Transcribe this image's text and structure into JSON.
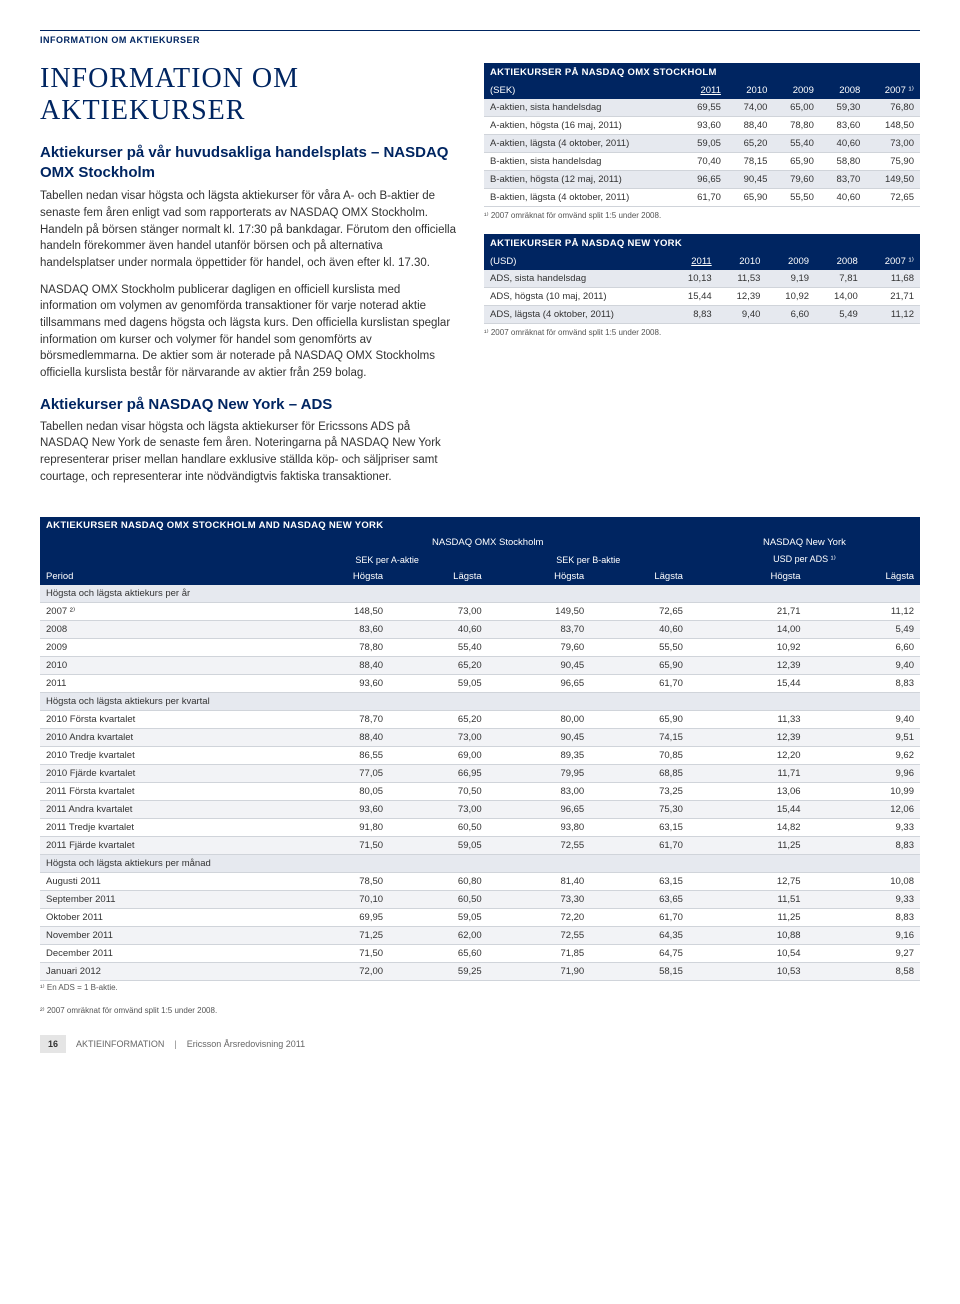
{
  "topLabel": "INFORMATION OM AKTIEKURSER",
  "title": "INFORMATION OM AKTIEKURSER",
  "left": {
    "subtitle": "Aktiekurser på vår huvudsakliga handelsplats – NASDAQ OMX Stockholm",
    "para1": "Tabellen nedan visar högsta och lägsta aktiekurser för våra A- och B-aktier de senaste fem åren enligt vad som rapporterats av NASDAQ OMX Stockholm. Handeln på börsen stänger normalt kl. 17:30 på bankdagar. Förutom den officiella handeln förekommer även handel utanför börsen och på alternativa handelsplatser under normala öppettider för handel, och även efter kl. 17.30.",
    "para2": "NASDAQ OMX Stockholm publicerar dagligen en officiell kurslista med information om volymen av genomförda transaktioner för varje noterad aktie tillsammans med dagens högsta och lägsta kurs. Den officiella kurslistan speglar information om kurser och volymer för handel som genomförts av börsmedlemmarna. De aktier som är noterade på NASDAQ OMX Stockholms officiella kurslista består för närvarande av aktier från 259 bolag.",
    "section2": "Aktiekurser på NASDAQ New York – ADS",
    "para3": "Tabellen nedan visar högsta och lägsta aktiekurser för Ericssons ADS på NASDAQ New York de senaste fem åren. Noteringarna på NASDAQ New York representerar priser mellan handlare exklusive ställda köp- och säljpriser samt courtage, och representerar inte nödvändigtvis faktiska transaktioner."
  },
  "table1": {
    "title": "AKTIEKURSER PÅ NASDAQ OMX STOCKHOLM",
    "headUnit": "(SEK)",
    "years": [
      "2011",
      "2010",
      "2009",
      "2008",
      "2007 ¹⁾"
    ],
    "rows": [
      {
        "label": "A-aktien, sista handelsdag",
        "v": [
          "69,55",
          "74,00",
          "65,00",
          "59,30",
          "76,80"
        ],
        "shade": true
      },
      {
        "label": "A-aktien, högsta (16 maj, 2011)",
        "v": [
          "93,60",
          "88,40",
          "78,80",
          "83,60",
          "148,50"
        ]
      },
      {
        "label": "A-aktien, lägsta (4 oktober, 2011)",
        "v": [
          "59,05",
          "65,20",
          "55,40",
          "40,60",
          "73,00"
        ],
        "shade": true
      },
      {
        "label": "B-aktien, sista handelsdag",
        "v": [
          "70,40",
          "78,15",
          "65,90",
          "58,80",
          "75,90"
        ]
      },
      {
        "label": "B-aktien, högsta (12 maj, 2011)",
        "v": [
          "96,65",
          "90,45",
          "79,60",
          "83,70",
          "149,50"
        ],
        "shade": true
      },
      {
        "label": "B-aktien, lägsta (4 oktober, 2011)",
        "v": [
          "61,70",
          "65,90",
          "55,50",
          "40,60",
          "72,65"
        ]
      }
    ],
    "footnote": "¹⁾ 2007 omräknat för omvänd split 1:5 under 2008."
  },
  "table2": {
    "title": "AKTIEKURSER PÅ NASDAQ NEW YORK",
    "headUnit": "(USD)",
    "years": [
      "2011",
      "2010",
      "2009",
      "2008",
      "2007 ¹⁾"
    ],
    "rows": [
      {
        "label": "ADS, sista handelsdag",
        "v": [
          "10,13",
          "11,53",
          "9,19",
          "7,81",
          "11,68"
        ],
        "shade": true
      },
      {
        "label": "ADS, högsta (10 maj, 2011)",
        "v": [
          "15,44",
          "12,39",
          "10,92",
          "14,00",
          "21,71"
        ]
      },
      {
        "label": "ADS, lägsta (4 oktober, 2011)",
        "v": [
          "8,83",
          "9,40",
          "6,60",
          "5,49",
          "11,12"
        ],
        "shade": true
      }
    ],
    "footnote": "¹⁾ 2007 omräknat för omvänd split 1:5 under 2008."
  },
  "bigTable": {
    "title": "AKTIEKURSER NASDAQ OMX STOCKHOLM AND NASDAQ NEW YORK",
    "group1": "NASDAQ OMX Stockholm",
    "group2": "NASDAQ New York",
    "sub1": "SEK per A-aktie",
    "sub2": "SEK per B-aktie",
    "sub3": "USD per ADS ¹⁾",
    "periodLabel": "Period",
    "colLabels": [
      "Högsta",
      "Lägsta",
      "Högsta",
      "Lägsta",
      "Högsta",
      "Lägsta"
    ],
    "sections": [
      {
        "heading": "Högsta och lägsta aktiekurs per år",
        "rows": [
          {
            "label": "2007 ²⁾",
            "v": [
              "148,50",
              "73,00",
              "149,50",
              "72,65",
              "21,71",
              "11,12"
            ]
          },
          {
            "label": "2008",
            "v": [
              "83,60",
              "40,60",
              "83,70",
              "40,60",
              "14,00",
              "5,49"
            ]
          },
          {
            "label": "2009",
            "v": [
              "78,80",
              "55,40",
              "79,60",
              "55,50",
              "10,92",
              "6,60"
            ]
          },
          {
            "label": "2010",
            "v": [
              "88,40",
              "65,20",
              "90,45",
              "65,90",
              "12,39",
              "9,40"
            ]
          },
          {
            "label": "2011",
            "v": [
              "93,60",
              "59,05",
              "96,65",
              "61,70",
              "15,44",
              "8,83"
            ]
          }
        ]
      },
      {
        "heading": "Högsta och lägsta aktiekurs per kvartal",
        "rows": [
          {
            "label": "2010 Första kvartalet",
            "v": [
              "78,70",
              "65,20",
              "80,00",
              "65,90",
              "11,33",
              "9,40"
            ]
          },
          {
            "label": "2010 Andra kvartalet",
            "v": [
              "88,40",
              "73,00",
              "90,45",
              "74,15",
              "12,39",
              "9,51"
            ]
          },
          {
            "label": "2010 Tredje kvartalet",
            "v": [
              "86,55",
              "69,00",
              "89,35",
              "70,85",
              "12,20",
              "9,62"
            ]
          },
          {
            "label": "2010 Fjärde kvartalet",
            "v": [
              "77,05",
              "66,95",
              "79,95",
              "68,85",
              "11,71",
              "9,96"
            ]
          },
          {
            "label": "2011 Första kvartalet",
            "v": [
              "80,05",
              "70,50",
              "83,00",
              "73,25",
              "13,06",
              "10,99"
            ]
          },
          {
            "label": "2011 Andra kvartalet",
            "v": [
              "93,60",
              "73,00",
              "96,65",
              "75,30",
              "15,44",
              "12,06"
            ]
          },
          {
            "label": "2011 Tredje kvartalet",
            "v": [
              "91,80",
              "60,50",
              "93,80",
              "63,15",
              "14,82",
              "9,33"
            ]
          },
          {
            "label": "2011 Fjärde kvartalet",
            "v": [
              "71,50",
              "59,05",
              "72,55",
              "61,70",
              "11,25",
              "8,83"
            ]
          }
        ]
      },
      {
        "heading": "Högsta och lägsta aktiekurs per månad",
        "rows": [
          {
            "label": "Augusti 2011",
            "v": [
              "78,50",
              "60,80",
              "81,40",
              "63,15",
              "12,75",
              "10,08"
            ]
          },
          {
            "label": "September 2011",
            "v": [
              "70,10",
              "60,50",
              "73,30",
              "63,65",
              "11,51",
              "9,33"
            ]
          },
          {
            "label": "Oktober 2011",
            "v": [
              "69,95",
              "59,05",
              "72,20",
              "61,70",
              "11,25",
              "8,83"
            ]
          },
          {
            "label": "November 2011",
            "v": [
              "71,25",
              "62,00",
              "72,55",
              "64,35",
              "10,88",
              "9,16"
            ]
          },
          {
            "label": "December 2011",
            "v": [
              "71,50",
              "65,60",
              "71,85",
              "64,75",
              "10,54",
              "9,27"
            ]
          },
          {
            "label": "Januari 2012",
            "v": [
              "72,00",
              "59,25",
              "71,90",
              "58,15",
              "10,53",
              "8,58"
            ]
          }
        ]
      }
    ],
    "footnotes": [
      "¹⁾ En ADS = 1 B-aktie.",
      "²⁾ 2007 omräknat för omvänd split 1:5 under 2008."
    ]
  },
  "footer": {
    "pageNum": "16",
    "section": "AKTIEINFORMATION",
    "doc": "Ericsson Årsredovisning 2011"
  }
}
